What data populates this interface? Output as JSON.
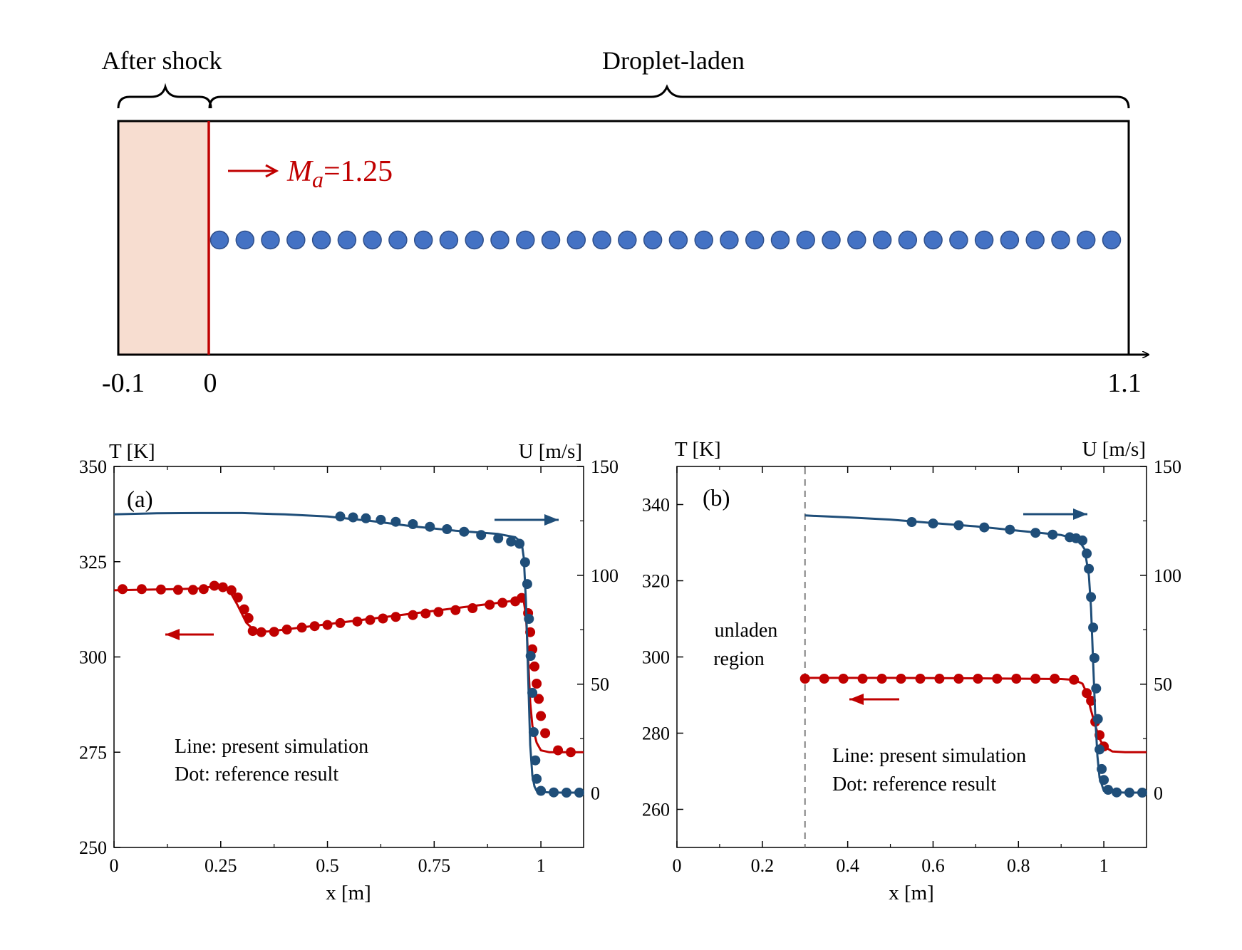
{
  "figure": {
    "schematic": {
      "label_after_shock": "After shock",
      "label_droplet_laden": "Droplet-laden",
      "mach_symbol": "M",
      "mach_subscript": "a",
      "mach_value": "=1.25",
      "axis_ticks": [
        "-0.1",
        "0",
        "1.1"
      ],
      "droplet_count": 36,
      "colors": {
        "shocked_region": "#f7ddd0",
        "shock_line": "#c00000",
        "droplet": "#4472c4",
        "droplet_edge": "#2f4f8a"
      }
    }
  },
  "chart_data": [
    {
      "type": "line",
      "panel_label": "(a)",
      "xlabel": "x [m]",
      "ylabel_left": "T [K]",
      "ylabel_right": "U [m/s]",
      "xlim": [
        0,
        1.1
      ],
      "ylim_left": [
        250,
        350
      ],
      "ylim_right": [
        -25,
        150
      ],
      "xticks": [
        "0",
        "0.25",
        "0.5",
        "0.75",
        "1"
      ],
      "xtick_values": [
        0,
        0.25,
        0.5,
        0.75,
        1
      ],
      "yticks_left": [
        "250",
        "275",
        "300",
        "325",
        "350"
      ],
      "ytick_values_left": [
        250,
        275,
        300,
        325,
        350
      ],
      "yticks_right": [
        "0",
        "50",
        "100",
        "150"
      ],
      "ytick_values_right": [
        0,
        50,
        100,
        150
      ],
      "legend_text": [
        "Line: present simulation",
        "Dot: reference result"
      ],
      "series": [
        {
          "key": "temperature",
          "axis": "left",
          "color": "#c00000",
          "arrow": "left",
          "line": {
            "x": [
              0,
              0.05,
              0.1,
              0.15,
              0.2,
              0.24,
              0.27,
              0.29,
              0.31,
              0.33,
              0.36,
              0.4,
              0.5,
              0.6,
              0.7,
              0.8,
              0.9,
              0.95,
              0.96,
              0.965,
              0.97,
              0.975,
              0.98,
              0.99,
              1.0,
              1.02,
              1.05,
              1.1
            ],
            "y": [
              317.5,
              317.6,
              317.7,
              317.8,
              318.0,
              318.6,
              317.5,
              313.5,
              309,
              306.8,
              306.7,
              307.2,
              308.6,
              310.0,
              311.4,
              312.8,
              314.2,
              315.0,
              314.5,
              311,
              300,
              288,
              282,
              277.5,
              275.5,
              275,
              275,
              275
            ]
          },
          "points": {
            "x": [
              0.02,
              0.065,
              0.11,
              0.15,
              0.185,
              0.21,
              0.235,
              0.255,
              0.275,
              0.29,
              0.305,
              0.315,
              0.325,
              0.345,
              0.375,
              0.405,
              0.44,
              0.47,
              0.5,
              0.53,
              0.57,
              0.6,
              0.63,
              0.66,
              0.7,
              0.73,
              0.76,
              0.8,
              0.84,
              0.88,
              0.91,
              0.94,
              0.955,
              0.97,
              0.975,
              0.98,
              0.985,
              0.99,
              0.995,
              1.0,
              1.01,
              1.04,
              1.07
            ],
            "y": [
              317.8,
              317.8,
              317.7,
              317.6,
              317.6,
              317.8,
              318.7,
              318.3,
              317.5,
              315.6,
              312.5,
              310.2,
              306.8,
              306.5,
              306.6,
              307.2,
              307.7,
              308.1,
              308.4,
              308.9,
              309.3,
              309.7,
              310.1,
              310.5,
              311.0,
              311.4,
              311.8,
              312.3,
              312.8,
              313.7,
              314.2,
              314.6,
              315.5,
              311.5,
              306.5,
              302,
              297.5,
              293,
              289,
              284.5,
              280,
              275.5,
              275
            ]
          }
        },
        {
          "key": "velocity",
          "axis": "right",
          "color": "#1f4e79",
          "arrow": "right",
          "line": {
            "x": [
              0,
              0.1,
              0.2,
              0.3,
              0.4,
              0.5,
              0.6,
              0.7,
              0.8,
              0.9,
              0.94,
              0.955,
              0.96,
              0.965,
              0.97,
              0.975,
              0.98,
              0.985,
              0.99,
              1.0,
              1.02,
              1.05,
              1.1
            ],
            "y": [
              128,
              128.5,
              128.6,
              128.6,
              128,
              127,
              125,
              122.5,
              120.5,
              119,
              117.5,
              115,
              108,
              88,
              55,
              22,
              8,
              3,
              1,
              0.5,
              0.3,
              0.2,
              0.2
            ]
          },
          "points": {
            "x": [
              0.53,
              0.56,
              0.59,
              0.625,
              0.66,
              0.7,
              0.74,
              0.78,
              0.82,
              0.86,
              0.9,
              0.93,
              0.95,
              0.963,
              0.968,
              0.972,
              0.976,
              0.98,
              0.983,
              0.987,
              0.99,
              1.0,
              1.03,
              1.06,
              1.09
            ],
            "y": [
              127,
              126.6,
              126.2,
              125.5,
              124.6,
              123.5,
              122.3,
              121.2,
              120,
              118.5,
              117,
              115.5,
              114.5,
              106,
              96,
              80,
              63,
              46,
              28,
              15,
              6.5,
              1,
              0.3,
              0.2,
              0.2
            ]
          }
        }
      ]
    },
    {
      "type": "line",
      "panel_label": "(b)",
      "xlabel": "x [m]",
      "ylabel_left": "T [K]",
      "ylabel_right": "U [m/s]",
      "xlim": [
        0,
        1.1
      ],
      "ylim_left": [
        250,
        350
      ],
      "ylim_right": [
        -25,
        150
      ],
      "xticks": [
        "0",
        "0.2",
        "0.4",
        "0.6",
        "0.8",
        "1"
      ],
      "xtick_values": [
        0,
        0.2,
        0.4,
        0.6,
        0.8,
        1
      ],
      "yticks_left": [
        "260",
        "280",
        "300",
        "320",
        "340"
      ],
      "ytick_values_left": [
        260,
        280,
        300,
        320,
        340
      ],
      "yticks_right": [
        "0",
        "50",
        "100",
        "150"
      ],
      "ytick_values_right": [
        0,
        50,
        100,
        150
      ],
      "vline_x": 0.3,
      "region_label": [
        "unladen",
        "region"
      ],
      "legend_text": [
        "Line: present simulation",
        "Dot: reference result"
      ],
      "series": [
        {
          "key": "temperature",
          "axis": "left",
          "color": "#c00000",
          "arrow": "left",
          "line": {
            "x": [
              0.3,
              0.5,
              0.7,
              0.9,
              0.93,
              0.95,
              0.96,
              0.97,
              0.98,
              0.99,
              1.0,
              1.02,
              1.05,
              1.1
            ],
            "y": [
              294.5,
              294.5,
              294.4,
              294.2,
              294.0,
              293.0,
              290.5,
              286,
              282,
              278.5,
              276.5,
              275.2,
              275,
              275
            ]
          },
          "points": {
            "x": [
              0.3,
              0.345,
              0.39,
              0.435,
              0.48,
              0.525,
              0.57,
              0.615,
              0.66,
              0.705,
              0.75,
              0.795,
              0.84,
              0.885,
              0.93,
              0.96,
              0.97,
              0.98,
              0.99,
              1.0
            ],
            "y": [
              294.3,
              294.3,
              294.3,
              294.3,
              294.3,
              294.3,
              294.3,
              294.3,
              294.3,
              294.3,
              294.3,
              294.3,
              294.3,
              294.3,
              294.0,
              290.5,
              288.5,
              283,
              279.5,
              276.5
            ]
          }
        },
        {
          "key": "velocity",
          "axis": "right",
          "color": "#1f4e79",
          "arrow": "right",
          "line": {
            "x": [
              0.3,
              0.4,
              0.5,
              0.6,
              0.7,
              0.8,
              0.9,
              0.94,
              0.955,
              0.965,
              0.97,
              0.975,
              0.98,
              0.985,
              0.99,
              1.0,
              1.02,
              1.05,
              1.1
            ],
            "y": [
              127.5,
              126.6,
              125.6,
              124,
              122.5,
              120.5,
              118.5,
              116.5,
              112,
              100,
              85,
              60,
              35,
              17,
              7,
              1,
              0.4,
              0.2,
              0.2
            ]
          },
          "points": {
            "x": [
              0.55,
              0.6,
              0.66,
              0.72,
              0.78,
              0.84,
              0.88,
              0.92,
              0.935,
              0.95,
              0.96,
              0.965,
              0.97,
              0.975,
              0.978,
              0.982,
              0.986,
              0.99,
              0.995,
              1.0,
              1.01,
              1.03,
              1.06,
              1.09
            ],
            "y": [
              124.5,
              123.8,
              123,
              122,
              121,
              119.5,
              118.7,
              117.5,
              117,
              116,
              110,
              103,
              90,
              76,
              62,
              48,
              34,
              20,
              11,
              6,
              1.5,
              0.3,
              0.2,
              0.2
            ]
          }
        }
      ]
    }
  ]
}
